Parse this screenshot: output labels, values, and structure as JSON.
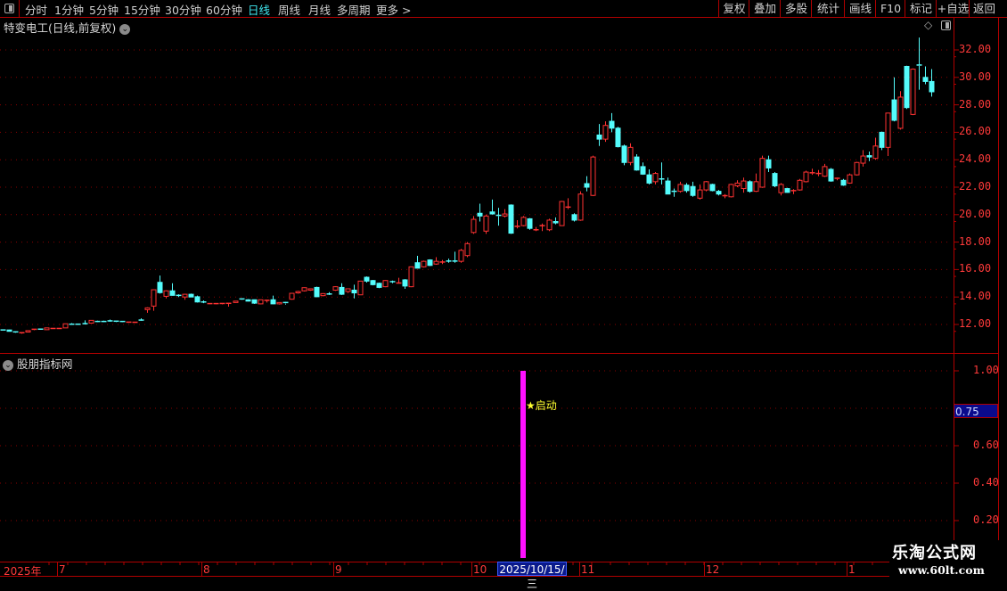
{
  "toolbar": {
    "periods": [
      {
        "label": "分时"
      },
      {
        "label": "1分钟"
      },
      {
        "label": "5分钟"
      },
      {
        "label": "15分钟"
      },
      {
        "label": "30分钟"
      },
      {
        "label": "60分钟"
      },
      {
        "label": "日线",
        "active": true
      },
      {
        "label": "周线"
      },
      {
        "label": "月线"
      },
      {
        "label": "多周期"
      },
      {
        "label": "更多 >"
      }
    ],
    "buttons": [
      {
        "label": "复权"
      },
      {
        "label": "叠加"
      },
      {
        "label": "多股"
      },
      {
        "label": "统计"
      },
      {
        "label": "画线"
      },
      {
        "label": "F10"
      },
      {
        "label": "标记"
      },
      {
        "label": "+自选"
      },
      {
        "label": "返回"
      }
    ]
  },
  "chart": {
    "title": "特变电工(日线,前复权)",
    "price_ticks": [
      "32.00",
      "30.00",
      "28.00",
      "26.00",
      "24.00",
      "22.00",
      "20.00",
      "18.00",
      "16.00",
      "14.00",
      "12.00"
    ],
    "colors": {
      "up": "#ff3232",
      "down": "#54fcfc",
      "grid": "#8a0000",
      "axis": "#ff3a3a"
    }
  },
  "indicator": {
    "title": "股朋指标网",
    "ticks": [
      "1.00",
      "0.60",
      "0.40",
      "0.20"
    ],
    "current_value": "0.75",
    "signal_label": "★启动",
    "signal_value": 1.0,
    "bar_color": "#ff10ff"
  },
  "date_axis": {
    "labels": [
      "2025年",
      "7",
      "8",
      "9",
      "10",
      "11",
      "12",
      "1"
    ],
    "cursor_date": "2025/10/15/三"
  },
  "watermark": {
    "name": "乐淘公式网",
    "url": "www.60lt.com"
  },
  "chart_data": {
    "type": "candlestick",
    "ylim": [
      11,
      33
    ],
    "ohlc": [
      [
        11.6,
        11.62,
        11.58,
        11.58
      ],
      [
        11.6,
        11.62,
        11.5,
        11.5
      ],
      [
        11.46,
        11.5,
        11.4,
        11.44
      ],
      [
        11.35,
        11.38,
        11.33,
        11.4
      ],
      [
        11.45,
        11.5,
        11.43,
        11.55
      ],
      [
        11.6,
        11.66,
        11.58,
        11.65
      ],
      [
        11.66,
        11.68,
        11.62,
        11.64
      ],
      [
        11.62,
        11.76,
        11.6,
        11.75
      ],
      [
        11.7,
        11.72,
        11.68,
        11.71
      ],
      [
        11.7,
        11.72,
        11.69,
        11.71
      ],
      [
        11.75,
        12.06,
        11.74,
        12.05
      ],
      [
        12.02,
        12.1,
        11.98,
        12.0
      ],
      [
        12.02,
        12.04,
        11.98,
        12.0
      ],
      [
        12.06,
        12.3,
        12.0,
        12.04
      ],
      [
        12.1,
        12.32,
        12.08,
        12.3
      ],
      [
        12.22,
        12.28,
        12.18,
        12.2
      ],
      [
        12.22,
        12.28,
        12.18,
        12.2
      ],
      [
        12.26,
        12.36,
        12.2,
        12.24
      ],
      [
        12.24,
        12.26,
        12.18,
        12.2
      ],
      [
        12.22,
        12.26,
        12.18,
        12.2
      ],
      [
        12.14,
        12.18,
        12.12,
        12.17
      ],
      [
        12.14,
        12.17,
        12.12,
        12.16
      ],
      [
        12.32,
        12.45,
        12.28,
        12.3
      ],
      [
        13.08,
        13.25,
        12.85,
        13.21
      ],
      [
        13.34,
        14.55,
        13.0,
        14.53
      ],
      [
        15.07,
        15.56,
        14.25,
        14.32
      ],
      [
        14.05,
        14.48,
        13.9,
        14.45
      ],
      [
        14.45,
        15.0,
        14.1,
        14.12
      ],
      [
        14.12,
        14.2,
        14.0,
        14.08
      ],
      [
        14.0,
        14.22,
        13.8,
        14.2
      ],
      [
        14.2,
        14.25,
        13.98,
        14.0
      ],
      [
        14.02,
        14.1,
        13.6,
        13.64
      ],
      [
        13.64,
        13.75,
        13.55,
        13.6
      ],
      [
        13.48,
        13.52,
        13.46,
        13.52
      ],
      [
        13.48,
        13.52,
        13.46,
        13.52
      ],
      [
        13.5,
        13.53,
        13.47,
        13.53
      ],
      [
        13.5,
        13.55,
        13.3,
        13.54
      ],
      [
        13.6,
        13.72,
        13.58,
        13.7
      ],
      [
        13.86,
        13.9,
        13.8,
        13.84
      ],
      [
        13.8,
        13.84,
        13.68,
        13.7
      ],
      [
        13.8,
        13.82,
        13.5,
        13.55
      ],
      [
        13.5,
        13.82,
        13.48,
        13.8
      ],
      [
        13.72,
        13.8,
        13.6,
        13.76
      ],
      [
        13.8,
        14.1,
        13.48,
        13.5
      ],
      [
        13.5,
        13.62,
        13.45,
        13.6
      ],
      [
        13.6,
        13.65,
        13.45,
        13.52
      ],
      [
        13.84,
        14.3,
        13.8,
        14.27
      ],
      [
        14.3,
        14.45,
        14.25,
        14.4
      ],
      [
        14.45,
        14.7,
        14.4,
        14.68
      ],
      [
        14.5,
        14.62,
        14.45,
        14.6
      ],
      [
        14.7,
        14.75,
        14.0,
        14.02
      ],
      [
        14.1,
        14.28,
        14.05,
        14.25
      ],
      [
        14.22,
        14.35,
        14.15,
        14.2
      ],
      [
        14.5,
        14.78,
        14.45,
        14.75
      ],
      [
        14.7,
        15.0,
        14.15,
        14.2
      ],
      [
        14.4,
        14.62,
        14.3,
        14.6
      ],
      [
        14.5,
        14.9,
        13.9,
        14.3
      ],
      [
        14.16,
        15.18,
        14.14,
        15.16
      ],
      [
        15.44,
        15.5,
        15.05,
        15.16
      ],
      [
        15.2,
        15.25,
        14.85,
        14.9
      ],
      [
        15.0,
        15.05,
        14.65,
        14.7
      ],
      [
        14.75,
        15.22,
        14.72,
        15.2
      ],
      [
        15.12,
        15.2,
        15.0,
        15.08
      ],
      [
        15.0,
        15.4,
        14.98,
        15.02
      ],
      [
        15.25,
        15.3,
        14.6,
        14.8
      ],
      [
        14.75,
        16.22,
        14.72,
        16.2
      ],
      [
        16.5,
        17.0,
        16.1,
        16.1
      ],
      [
        16.2,
        16.65,
        16.15,
        16.6
      ],
      [
        16.7,
        16.75,
        16.25,
        16.3
      ],
      [
        16.4,
        16.9,
        16.35,
        16.6
      ],
      [
        16.55,
        16.7,
        16.4,
        16.55
      ],
      [
        16.62,
        16.8,
        16.5,
        16.6
      ],
      [
        16.62,
        17.3,
        16.5,
        16.6
      ],
      [
        16.6,
        17.5,
        16.5,
        17.4
      ],
      [
        17.02,
        18.0,
        16.9,
        17.89
      ],
      [
        18.7,
        19.9,
        18.6,
        19.66
      ],
      [
        20.1,
        20.8,
        19.5,
        19.9
      ],
      [
        18.8,
        20.0,
        18.6,
        19.9
      ],
      [
        20.2,
        21.1,
        20.0,
        20.05
      ],
      [
        19.95,
        20.5,
        19.2,
        19.9
      ],
      [
        19.9,
        20.4,
        19.8,
        20.05
      ],
      [
        20.7,
        20.75,
        18.6,
        18.65
      ],
      [
        19.1,
        19.6,
        19.0,
        19.15
      ],
      [
        19.2,
        19.9,
        19.15,
        19.8
      ],
      [
        19.7,
        19.75,
        18.9,
        19.0
      ],
      [
        18.85,
        19.1,
        18.8,
        18.9
      ],
      [
        19.2,
        19.35,
        18.8,
        19.2
      ],
      [
        18.9,
        19.7,
        18.8,
        19.6
      ],
      [
        19.5,
        19.8,
        19.3,
        19.4
      ],
      [
        19.2,
        21.0,
        19.18,
        20.96
      ],
      [
        20.5,
        21.2,
        20.4,
        20.55
      ],
      [
        20.0,
        20.1,
        19.5,
        19.6
      ],
      [
        19.6,
        21.7,
        19.55,
        21.5
      ],
      [
        22.26,
        22.8,
        21.7,
        22.0
      ],
      [
        21.4,
        24.3,
        21.35,
        24.2
      ],
      [
        25.8,
        26.6,
        25.0,
        25.5
      ],
      [
        25.5,
        26.8,
        25.3,
        26.5
      ],
      [
        26.8,
        27.4,
        26.0,
        26.3
      ],
      [
        26.3,
        26.4,
        24.9,
        24.95
      ],
      [
        25.0,
        25.1,
        23.6,
        23.8
      ],
      [
        23.8,
        25.2,
        23.6,
        24.9
      ],
      [
        24.2,
        24.4,
        23.2,
        23.25
      ],
      [
        23.5,
        23.8,
        22.9,
        22.95
      ],
      [
        22.9,
        23.3,
        22.2,
        22.3
      ],
      [
        22.4,
        23.1,
        22.2,
        23.0
      ],
      [
        22.6,
        23.8,
        22.2,
        22.55
      ],
      [
        22.45,
        22.7,
        21.5,
        21.5
      ],
      [
        21.7,
        21.9,
        21.3,
        21.65
      ],
      [
        21.7,
        22.4,
        21.6,
        22.2
      ],
      [
        22.15,
        22.3,
        21.6,
        21.75
      ],
      [
        22.05,
        22.4,
        21.3,
        21.4
      ],
      [
        21.2,
        22.2,
        21.1,
        21.8
      ],
      [
        21.8,
        22.45,
        21.7,
        22.4
      ],
      [
        22.2,
        22.25,
        21.7,
        21.75
      ],
      [
        21.7,
        21.8,
        21.4,
        21.5
      ],
      [
        21.35,
        21.5,
        21.2,
        21.38
      ],
      [
        21.3,
        22.25,
        21.25,
        22.2
      ],
      [
        22.1,
        22.5,
        22.0,
        22.3
      ],
      [
        21.9,
        22.7,
        21.6,
        22.45
      ],
      [
        22.4,
        22.5,
        21.6,
        21.7
      ],
      [
        21.7,
        23.0,
        21.65,
        22.4
      ],
      [
        22.0,
        24.3,
        21.95,
        24.1
      ],
      [
        24.0,
        24.3,
        23.1,
        23.4
      ],
      [
        23.0,
        23.1,
        22.0,
        22.1
      ],
      [
        21.6,
        22.3,
        21.4,
        22.2
      ],
      [
        21.9,
        21.95,
        21.6,
        21.62
      ],
      [
        21.7,
        21.85,
        21.5,
        21.75
      ],
      [
        21.8,
        22.6,
        21.75,
        22.5
      ],
      [
        22.4,
        23.2,
        22.35,
        23.1
      ],
      [
        23.0,
        23.35,
        22.9,
        23.05
      ],
      [
        22.95,
        23.25,
        22.8,
        23.0
      ],
      [
        22.8,
        23.7,
        22.75,
        23.5
      ],
      [
        23.3,
        23.4,
        22.4,
        22.45
      ],
      [
        22.6,
        22.7,
        22.5,
        22.65
      ],
      [
        22.5,
        22.6,
        22.1,
        22.15
      ],
      [
        22.3,
        23.0,
        22.25,
        22.9
      ],
      [
        22.9,
        23.85,
        22.85,
        23.8
      ],
      [
        23.75,
        24.7,
        23.5,
        24.27
      ],
      [
        24.3,
        24.6,
        23.9,
        24.2
      ],
      [
        24.1,
        25.6,
        24.0,
        25.0
      ],
      [
        26.0,
        26.05,
        24.7,
        24.9
      ],
      [
        24.9,
        27.4,
        24.27,
        27.4
      ],
      [
        28.36,
        30.0,
        26.8,
        26.87
      ],
      [
        26.29,
        29.0,
        26.2,
        28.56
      ],
      [
        30.8,
        30.85,
        27.7,
        27.8
      ],
      [
        27.3,
        30.65,
        27.25,
        30.6
      ],
      [
        30.9,
        32.9,
        29.1,
        30.85
      ],
      [
        30.0,
        30.8,
        29.5,
        29.7
      ],
      [
        29.7,
        30.6,
        28.6,
        28.95
      ]
    ]
  }
}
